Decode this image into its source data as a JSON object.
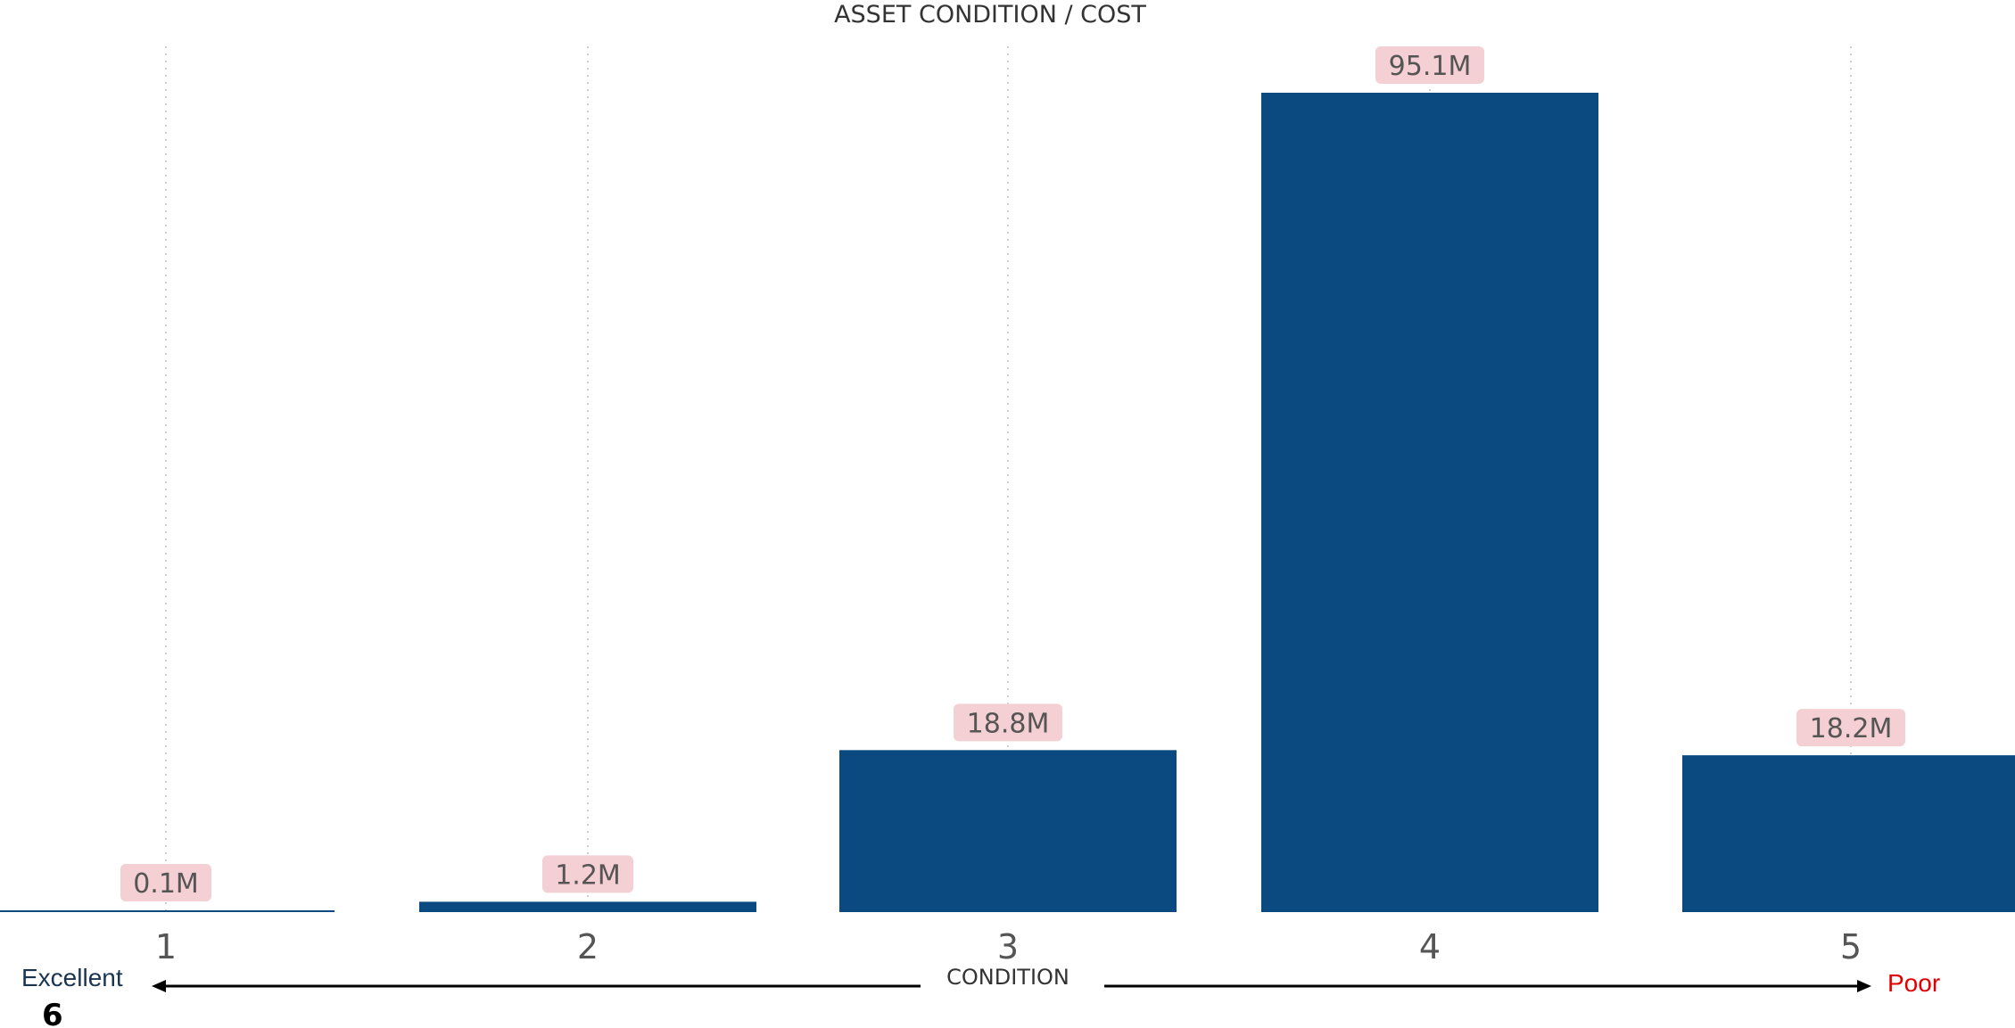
{
  "chart_data": {
    "type": "bar",
    "title": "ASSET CONDITION / COST",
    "xlabel": "CONDITION",
    "ylabel": "",
    "categories": [
      "1",
      "2",
      "3",
      "4",
      "5"
    ],
    "values": [
      0.1,
      1.2,
      18.8,
      95.1,
      18.2
    ],
    "data_labels": [
      "0.1M",
      "1.2M",
      "18.8M",
      "95.1M",
      "18.2M"
    ],
    "ylim": [
      0,
      95.1
    ],
    "grid": "vertical dotted",
    "legend": "none",
    "bar_color": "#0a4a80",
    "label_bg_color": "#f4cfd3"
  },
  "scale": {
    "left_end": "Excellent",
    "right_end": "Poor",
    "left_color": "#1a3550",
    "right_color": "#e00000"
  },
  "page_number": "6"
}
